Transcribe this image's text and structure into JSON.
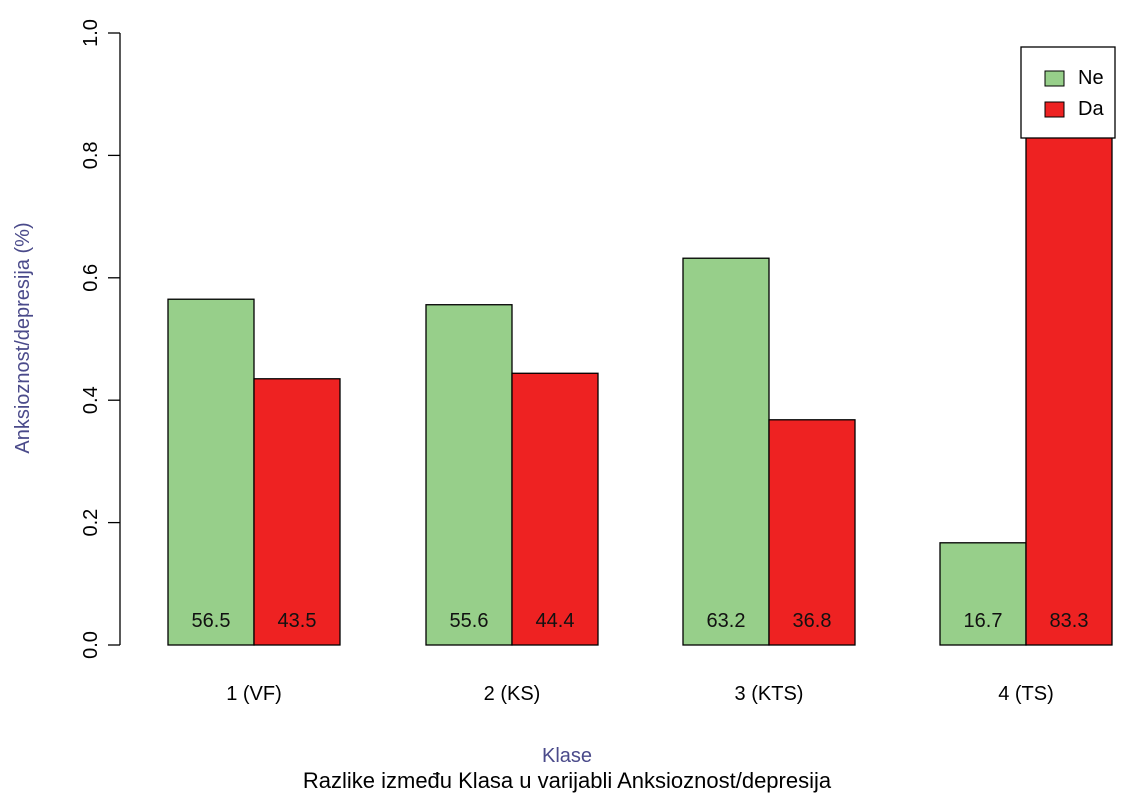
{
  "chart_data": {
    "type": "bar",
    "title": "Razlike između Klasa u varijabli Anksioznost/depresija",
    "xlabel": "Klase",
    "ylabel": "Anksioznost/depresija (%)",
    "ylim": [
      0,
      1
    ],
    "yticks": [
      "0.0",
      "0.2",
      "0.4",
      "0.6",
      "0.8",
      "1.0"
    ],
    "categories": [
      "1 (VF)",
      "2 (KS)",
      "3 (KTS)",
      "4 (TS)"
    ],
    "series": [
      {
        "name": "Ne",
        "color": "#97cf8a",
        "values": [
          0.565,
          0.556,
          0.632,
          0.167
        ],
        "labels": [
          "56.5",
          "55.6",
          "63.2",
          "16.7"
        ]
      },
      {
        "name": "Da",
        "color": "#ee2222",
        "values": [
          0.435,
          0.444,
          0.368,
          0.833
        ],
        "labels": [
          "43.5",
          "44.4",
          "36.8",
          "83.3"
        ]
      }
    ],
    "legend_position": "top-right",
    "axis_label_color": "#4a4a8a",
    "grid": false
  }
}
